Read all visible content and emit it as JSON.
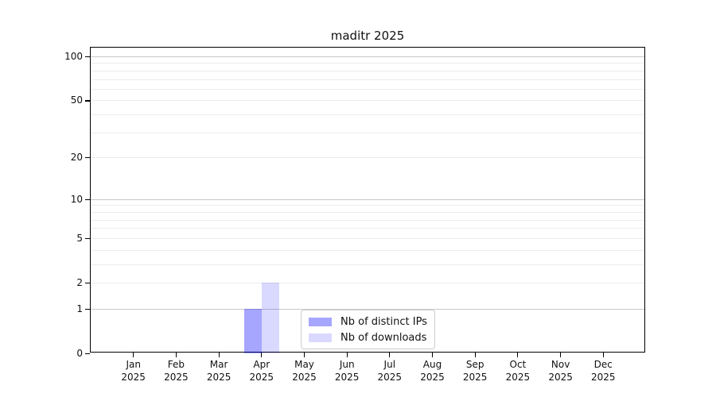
{
  "chart_data": {
    "type": "bar",
    "title": "maditr 2025",
    "xlabel": "",
    "ylabel": "",
    "year": "2025",
    "categories": [
      "Jan",
      "Feb",
      "Mar",
      "Apr",
      "May",
      "Jun",
      "Jul",
      "Aug",
      "Sep",
      "Oct",
      "Nov",
      "Dec"
    ],
    "series": [
      {
        "name": "Nb of distinct IPs",
        "fill": "rgba(0,0,255,0.35)",
        "color_on_white": "#a9aaf8",
        "values": [
          0,
          0,
          0,
          1,
          0,
          0,
          0,
          0,
          0,
          0,
          0,
          0
        ]
      },
      {
        "name": "Nb of downloads",
        "fill": "rgba(0,0,255,0.15)",
        "color_on_white": "#dbdcfa",
        "values": [
          0,
          0,
          0,
          2,
          0,
          0,
          0,
          0,
          0,
          0,
          0,
          0
        ]
      }
    ],
    "yscale": "log1p",
    "ylim": [
      0,
      100
    ],
    "yticks": [
      0,
      1,
      2,
      5,
      10,
      20,
      50,
      100
    ],
    "grid": {
      "on": true,
      "major": [
        1,
        10,
        100
      ],
      "minor": [
        2,
        3,
        4,
        5,
        6,
        7,
        8,
        9,
        20,
        30,
        40,
        50,
        60,
        70,
        80,
        90
      ]
    },
    "legend_position": "lower center",
    "colors": {
      "spine": "#000000",
      "grid_major": "#c9c9c9",
      "grid_minor": "#ececec",
      "text": "#111111",
      "legend_border": "#cccccc",
      "background": "#ffffff"
    }
  }
}
